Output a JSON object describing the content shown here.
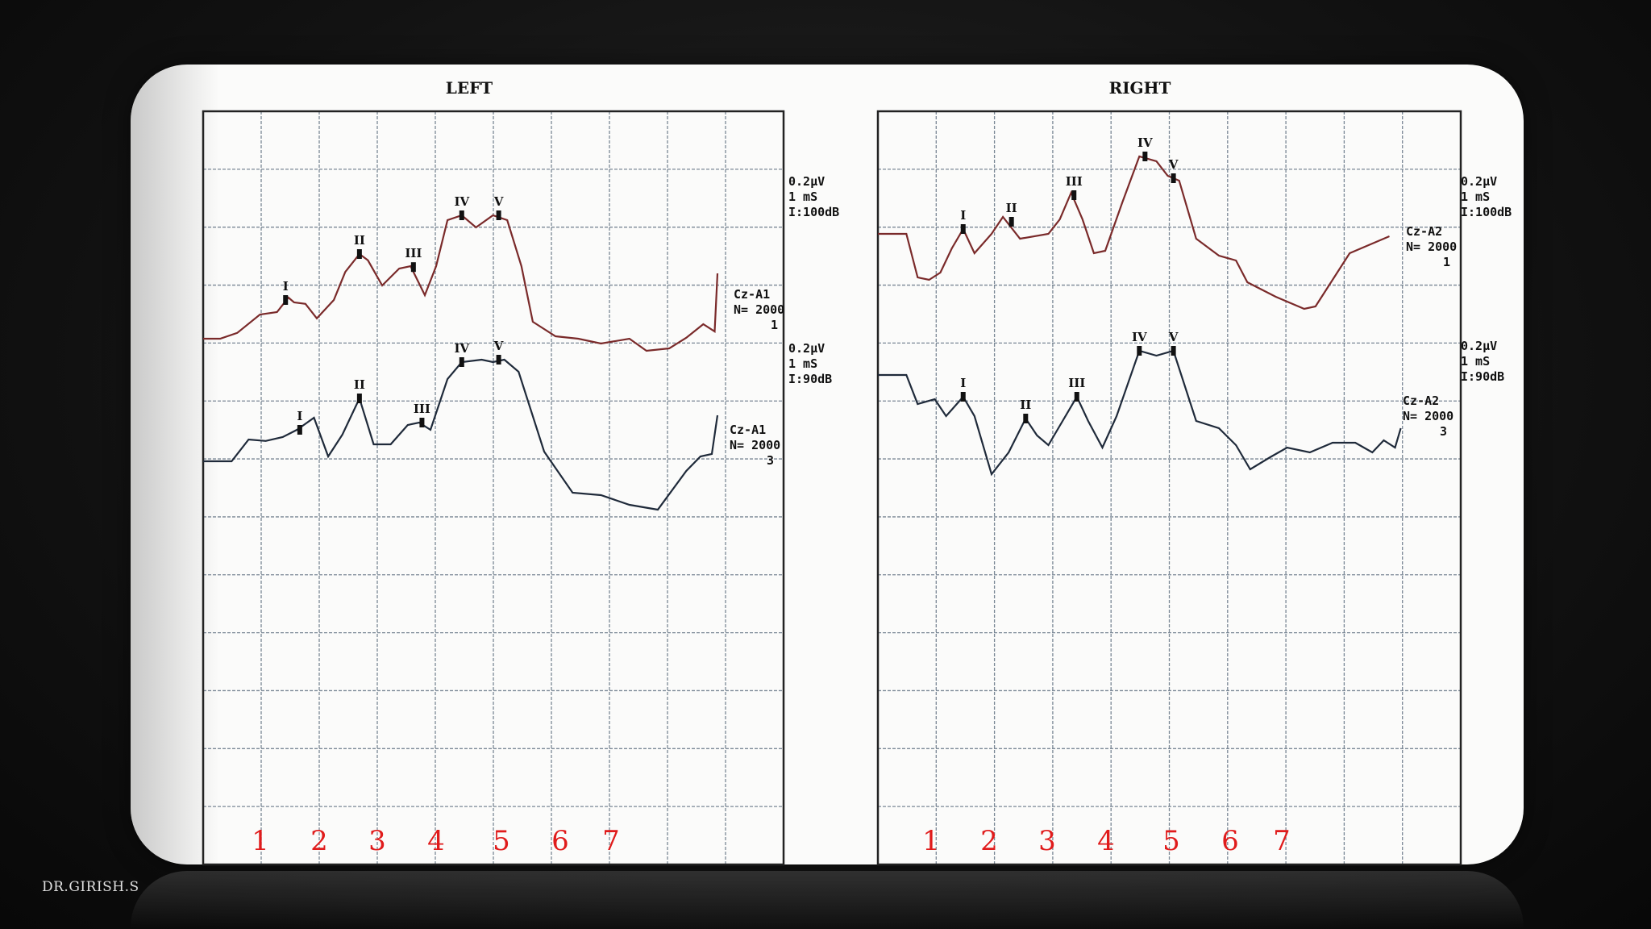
{
  "credit": "DR.GIRISH.S",
  "colors": {
    "top_trace": "#7a2a2a",
    "bottom_trace": "#1f2a3a",
    "numbers": "#e01b1b",
    "grid": "#7a8795"
  },
  "chart_data": [
    {
      "type": "line",
      "title": "LEFT",
      "grid": true,
      "x_numbers": [
        "1",
        "2",
        "3",
        "4",
        "5",
        "6",
        "7"
      ],
      "series": [
        {
          "settings": [
            "0.2µV",
            "1 mS",
            "I:100dB"
          ],
          "channel": [
            "Cz-A1",
            "N= 2000",
            "1"
          ],
          "trace": [
            [
              0,
              0
            ],
            [
              0.3,
              0
            ],
            [
              0.6,
              0.12
            ],
            [
              1.0,
              0.5
            ],
            [
              1.3,
              0.55
            ],
            [
              1.5,
              0.85
            ],
            [
              1.6,
              0.75
            ],
            [
              1.8,
              0.72
            ],
            [
              2.0,
              0.42
            ],
            [
              2.3,
              0.8
            ],
            [
              2.5,
              1.38
            ],
            [
              2.75,
              1.75
            ],
            [
              2.9,
              1.62
            ],
            [
              3.15,
              1.1
            ],
            [
              3.45,
              1.45
            ],
            [
              3.65,
              1.5
            ],
            [
              3.9,
              0.9
            ],
            [
              4.1,
              1.5
            ],
            [
              4.3,
              2.45
            ],
            [
              4.55,
              2.55
            ],
            [
              4.8,
              2.3
            ],
            [
              5.1,
              2.55
            ],
            [
              5.35,
              2.45
            ],
            [
              5.6,
              1.5
            ],
            [
              5.8,
              0.35
            ],
            [
              6.2,
              0.05
            ],
            [
              6.6,
              0.0
            ],
            [
              7.0,
              -0.1
            ],
            [
              7.5,
              0.0
            ],
            [
              7.8,
              -0.25
            ],
            [
              8.2,
              -0.2
            ],
            [
              8.5,
              0.02
            ],
            [
              8.8,
              0.3
            ],
            [
              9.0,
              0.15
            ],
            [
              9.05,
              1.35
            ]
          ],
          "peaks": [
            {
              "label": "I",
              "x": 1.45,
              "y": 0.8
            },
            {
              "label": "II",
              "x": 2.75,
              "y": 1.75
            },
            {
              "label": "III",
              "x": 3.7,
              "y": 1.48
            },
            {
              "label": "IV",
              "x": 4.55,
              "y": 2.55
            },
            {
              "label": "V",
              "x": 5.2,
              "y": 2.55
            }
          ]
        },
        {
          "settings": [
            "0.2µV",
            "1 mS",
            "I:90dB"
          ],
          "channel": [
            "Cz-A1",
            "N= 2000",
            "3"
          ],
          "trace": [
            [
              0,
              0
            ],
            [
              0.5,
              0
            ],
            [
              0.8,
              0.45
            ],
            [
              1.1,
              0.42
            ],
            [
              1.4,
              0.5
            ],
            [
              1.65,
              0.65
            ],
            [
              1.95,
              0.9
            ],
            [
              2.2,
              0.1
            ],
            [
              2.45,
              0.55
            ],
            [
              2.75,
              1.3
            ],
            [
              3.0,
              0.35
            ],
            [
              3.3,
              0.35
            ],
            [
              3.6,
              0.75
            ],
            [
              3.8,
              0.8
            ],
            [
              4.0,
              0.65
            ],
            [
              4.3,
              1.7
            ],
            [
              4.55,
              2.05
            ],
            [
              4.9,
              2.1
            ],
            [
              5.1,
              2.05
            ],
            [
              5.3,
              2.1
            ],
            [
              5.55,
              1.85
            ],
            [
              6.0,
              0.2
            ],
            [
              6.5,
              -0.65
            ],
            [
              7.0,
              -0.7
            ],
            [
              7.5,
              -0.9
            ],
            [
              8.0,
              -1.0
            ],
            [
              8.5,
              -0.2
            ],
            [
              8.75,
              0.1
            ],
            [
              8.95,
              0.15
            ],
            [
              9.05,
              0.95
            ]
          ],
          "peaks": [
            {
              "label": "I",
              "x": 1.7,
              "y": 0.65
            },
            {
              "label": "II",
              "x": 2.75,
              "y": 1.3
            },
            {
              "label": "III",
              "x": 3.85,
              "y": 0.8
            },
            {
              "label": "IV",
              "x": 4.55,
              "y": 2.05
            },
            {
              "label": "V",
              "x": 5.2,
              "y": 2.1
            }
          ]
        }
      ]
    },
    {
      "type": "line",
      "title": "RIGHT",
      "grid": true,
      "x_numbers": [
        "1",
        "2",
        "3",
        "4",
        "5",
        "6",
        "7"
      ],
      "series": [
        {
          "settings": [
            "0.2µV",
            "1 mS",
            "I:100dB"
          ],
          "channel": [
            "Cz-A2",
            "N= 2000",
            "1"
          ],
          "trace": [
            [
              0,
              1.7
            ],
            [
              0.5,
              1.7
            ],
            [
              0.7,
              0.8
            ],
            [
              0.9,
              0.75
            ],
            [
              1.1,
              0.9
            ],
            [
              1.3,
              1.4
            ],
            [
              1.5,
              1.8
            ],
            [
              1.7,
              1.3
            ],
            [
              2.0,
              1.7
            ],
            [
              2.2,
              2.05
            ],
            [
              2.5,
              1.6
            ],
            [
              3.0,
              1.7
            ],
            [
              3.2,
              2.0
            ],
            [
              3.4,
              2.55
            ],
            [
              3.6,
              2.0
            ],
            [
              3.8,
              1.3
            ],
            [
              4.0,
              1.35
            ],
            [
              4.3,
              2.35
            ],
            [
              4.6,
              3.3
            ],
            [
              4.9,
              3.2
            ],
            [
              5.1,
              2.9
            ],
            [
              5.3,
              2.8
            ],
            [
              5.6,
              1.6
            ],
            [
              6.0,
              1.25
            ],
            [
              6.3,
              1.15
            ],
            [
              6.5,
              0.7
            ],
            [
              7.0,
              0.4
            ],
            [
              7.5,
              0.15
            ],
            [
              7.7,
              0.2
            ],
            [
              8.0,
              0.75
            ],
            [
              8.3,
              1.3
            ],
            [
              8.6,
              1.45
            ],
            [
              8.8,
              1.55
            ],
            [
              9.0,
              1.65
            ]
          ],
          "peaks": [
            {
              "label": "I",
              "x": 1.5,
              "y": 1.8
            },
            {
              "label": "II",
              "x": 2.35,
              "y": 1.95
            },
            {
              "label": "III",
              "x": 3.45,
              "y": 2.5
            },
            {
              "label": "IV",
              "x": 4.7,
              "y": 3.3
            },
            {
              "label": "V",
              "x": 5.2,
              "y": 2.85
            }
          ]
        },
        {
          "settings": [
            "0.2µV",
            "1 mS",
            "I:90dB"
          ],
          "channel": [
            "Cz-A2",
            "N= 2000",
            "3"
          ],
          "trace": [
            [
              0,
              2.05
            ],
            [
              0.5,
              2.05
            ],
            [
              0.7,
              1.45
            ],
            [
              1.0,
              1.55
            ],
            [
              1.2,
              1.2
            ],
            [
              1.5,
              1.6
            ],
            [
              1.7,
              1.2
            ],
            [
              2.0,
              0.0
            ],
            [
              2.3,
              0.45
            ],
            [
              2.6,
              1.15
            ],
            [
              2.8,
              0.8
            ],
            [
              3.0,
              0.6
            ],
            [
              3.2,
              1.0
            ],
            [
              3.5,
              1.6
            ],
            [
              3.7,
              1.1
            ],
            [
              3.95,
              0.55
            ],
            [
              4.2,
              1.2
            ],
            [
              4.6,
              2.55
            ],
            [
              4.9,
              2.45
            ],
            [
              5.2,
              2.55
            ],
            [
              5.6,
              1.1
            ],
            [
              6.0,
              0.95
            ],
            [
              6.3,
              0.6
            ],
            [
              6.55,
              0.1
            ],
            [
              6.9,
              0.35
            ],
            [
              7.2,
              0.55
            ],
            [
              7.6,
              0.45
            ],
            [
              8.0,
              0.65
            ],
            [
              8.4,
              0.65
            ],
            [
              8.7,
              0.45
            ],
            [
              8.9,
              0.7
            ],
            [
              9.1,
              0.55
            ],
            [
              9.2,
              0.95
            ]
          ],
          "peaks": [
            {
              "label": "I",
              "x": 1.5,
              "y": 1.6
            },
            {
              "label": "II",
              "x": 2.6,
              "y": 1.15
            },
            {
              "label": "III",
              "x": 3.5,
              "y": 1.6
            },
            {
              "label": "IV",
              "x": 4.6,
              "y": 2.55
            },
            {
              "label": "V",
              "x": 5.2,
              "y": 2.55
            }
          ]
        }
      ]
    }
  ]
}
